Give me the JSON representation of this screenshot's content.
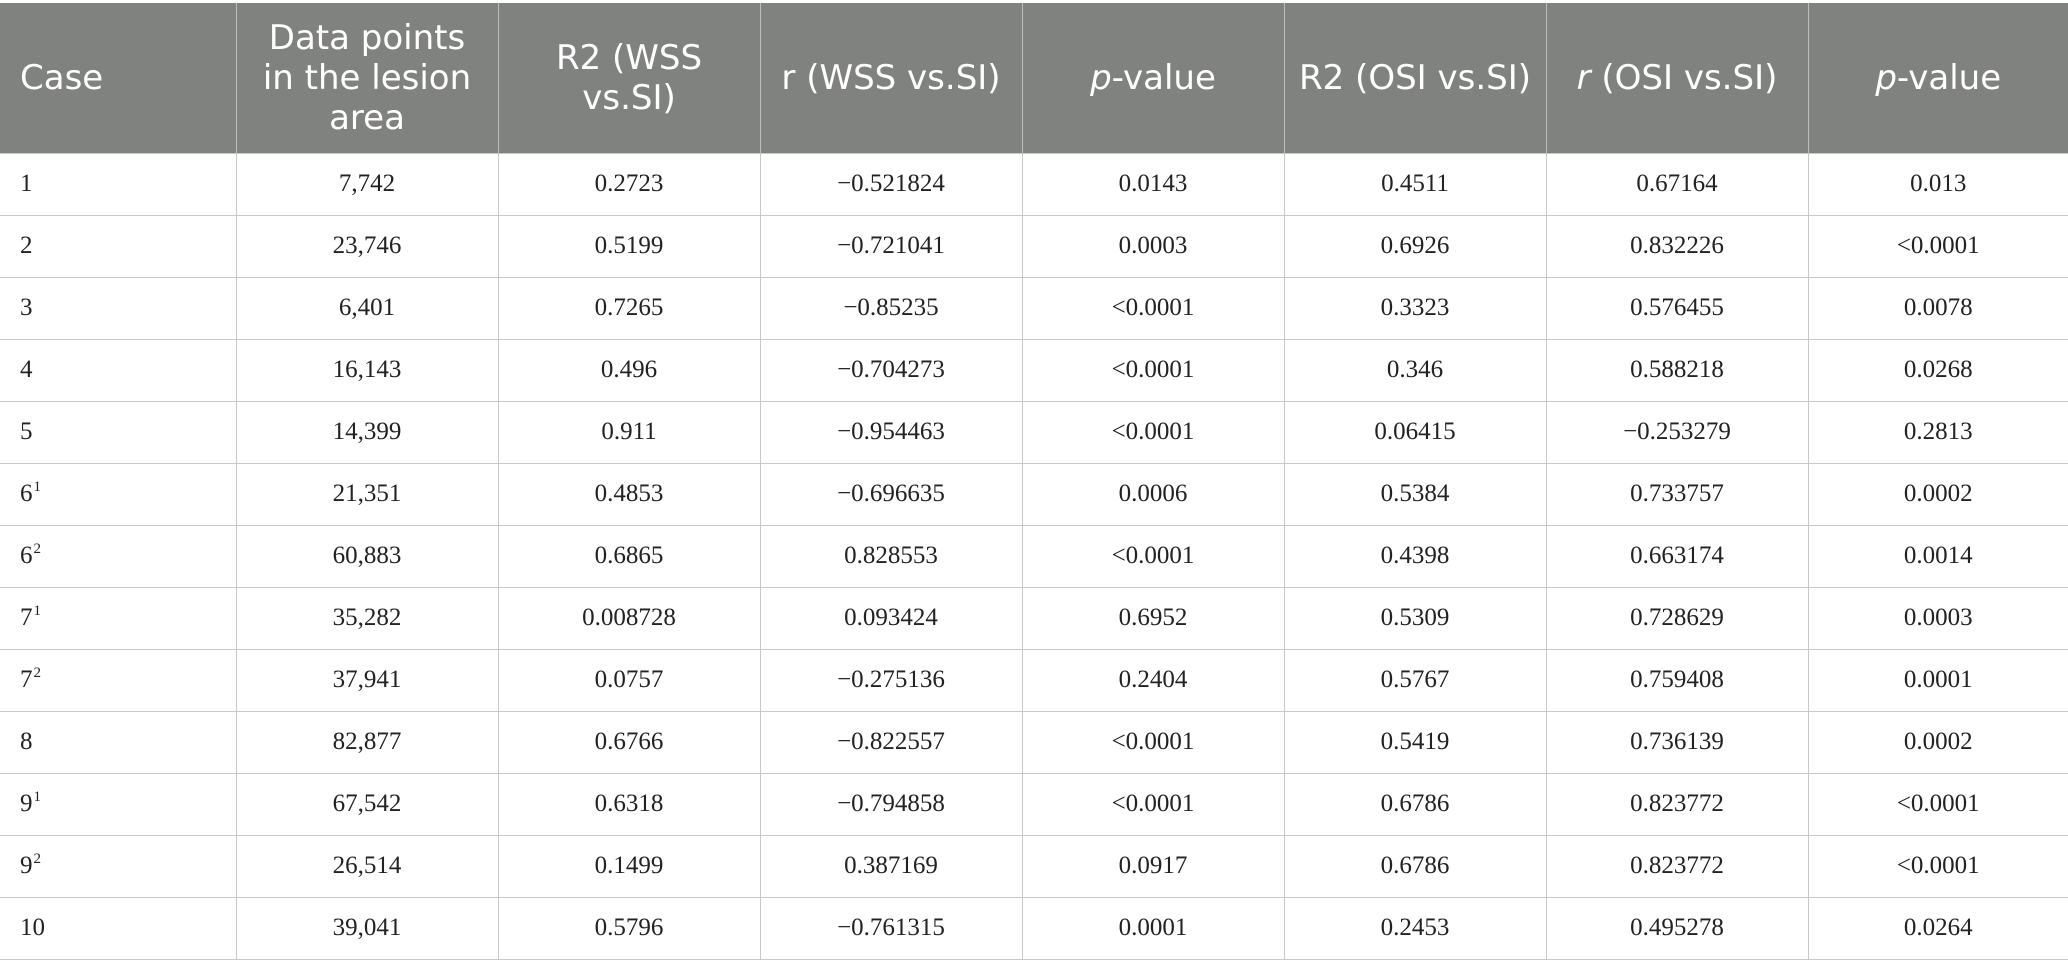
{
  "table": {
    "headers": [
      {
        "text": "Case"
      },
      {
        "text": "Data points in the lesion area"
      },
      {
        "text": "R2 (WSS vs.SI)"
      },
      {
        "text": "r (WSS vs.SI)"
      },
      {
        "text_italic": "p",
        "text": "-value"
      },
      {
        "text": "R2 (OSI vs.SI)"
      },
      {
        "text_italic": "r",
        "text": " (OSI vs.SI)"
      },
      {
        "text_italic": "p",
        "text": "-value"
      }
    ],
    "rows": [
      {
        "case": "1",
        "sup": "",
        "points": "7,742",
        "r2_wss": "0.2723",
        "r_wss": "−0.521824",
        "p_wss": "0.0143",
        "r2_osi": "0.4511",
        "r_osi": "0.67164",
        "p_osi": "0.013"
      },
      {
        "case": "2",
        "sup": "",
        "points": "23,746",
        "r2_wss": "0.5199",
        "r_wss": "−0.721041",
        "p_wss": "0.0003",
        "r2_osi": "0.6926",
        "r_osi": "0.832226",
        "p_osi": "<0.0001"
      },
      {
        "case": "3",
        "sup": "",
        "points": "6,401",
        "r2_wss": "0.7265",
        "r_wss": "−0.85235",
        "p_wss": "<0.0001",
        "r2_osi": "0.3323",
        "r_osi": "0.576455",
        "p_osi": "0.0078"
      },
      {
        "case": "4",
        "sup": "",
        "points": "16,143",
        "r2_wss": "0.496",
        "r_wss": "−0.704273",
        "p_wss": "<0.0001",
        "r2_osi": "0.346",
        "r_osi": "0.588218",
        "p_osi": "0.0268"
      },
      {
        "case": "5",
        "sup": "",
        "points": "14,399",
        "r2_wss": "0.911",
        "r_wss": "−0.954463",
        "p_wss": "<0.0001",
        "r2_osi": "0.06415",
        "r_osi": "−0.253279",
        "p_osi": "0.2813"
      },
      {
        "case": "6",
        "sup": "1",
        "points": "21,351",
        "r2_wss": "0.4853",
        "r_wss": "−0.696635",
        "p_wss": "0.0006",
        "r2_osi": "0.5384",
        "r_osi": "0.733757",
        "p_osi": "0.0002"
      },
      {
        "case": "6",
        "sup": "2",
        "points": "60,883",
        "r2_wss": "0.6865",
        "r_wss": "0.828553",
        "p_wss": "<0.0001",
        "r2_osi": "0.4398",
        "r_osi": "0.663174",
        "p_osi": "0.0014"
      },
      {
        "case": "7",
        "sup": "1",
        "points": "35,282",
        "r2_wss": "0.008728",
        "r_wss": "0.093424",
        "p_wss": "0.6952",
        "r2_osi": "0.5309",
        "r_osi": "0.728629",
        "p_osi": "0.0003"
      },
      {
        "case": "7",
        "sup": "2",
        "points": "37,941",
        "r2_wss": "0.0757",
        "r_wss": "−0.275136",
        "p_wss": "0.2404",
        "r2_osi": "0.5767",
        "r_osi": "0.759408",
        "p_osi": "0.0001"
      },
      {
        "case": "8",
        "sup": "",
        "points": "82,877",
        "r2_wss": "0.6766",
        "r_wss": "−0.822557",
        "p_wss": "<0.0001",
        "r2_osi": "0.5419",
        "r_osi": "0.736139",
        "p_osi": "0.0002"
      },
      {
        "case": "9",
        "sup": "1",
        "points": "67,542",
        "r2_wss": "0.6318",
        "r_wss": "−0.794858",
        "p_wss": "<0.0001",
        "r2_osi": "0.6786",
        "r_osi": "0.823772",
        "p_osi": "<0.0001"
      },
      {
        "case": "9",
        "sup": "2",
        "points": "26,514",
        "r2_wss": "0.1499",
        "r_wss": "0.387169",
        "p_wss": "0.0917",
        "r2_osi": "0.6786",
        "r_osi": "0.823772",
        "p_osi": "<0.0001"
      },
      {
        "case": "10",
        "sup": "",
        "points": "39,041",
        "r2_wss": "0.5796",
        "r_wss": "−0.761315",
        "p_wss": "0.0001",
        "r2_osi": "0.2453",
        "r_osi": "0.495278",
        "p_osi": "0.0264"
      }
    ]
  }
}
